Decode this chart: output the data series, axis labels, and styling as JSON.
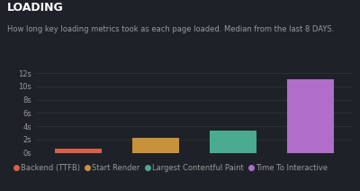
{
  "title": "LOADING",
  "subtitle": "How long key loading metrics took as each page loaded. Median from the last 8 DAYS.",
  "categories": [
    "Backend (TTFB)",
    "Start Render",
    "Largest Contentful Paint",
    "Time To Interactive"
  ],
  "values": [
    0.6,
    2.3,
    3.4,
    11.0
  ],
  "bar_colors": [
    "#d9604a",
    "#c8923a",
    "#4aab8e",
    "#b06dc9"
  ],
  "background_color": "#1e2228",
  "text_color": "#999999",
  "title_color": "#ffffff",
  "grid_color": "#2e3540",
  "yticks": [
    0,
    2,
    4,
    6,
    8,
    10,
    12
  ],
  "ytick_labels": [
    "0s",
    "2s",
    "4s",
    "6s",
    "8s",
    "10s",
    "12s"
  ],
  "ylim": [
    0,
    13.5
  ],
  "title_fontsize": 9,
  "subtitle_fontsize": 6,
  "tick_fontsize": 6,
  "legend_fontsize": 6,
  "bar_width": 0.6
}
